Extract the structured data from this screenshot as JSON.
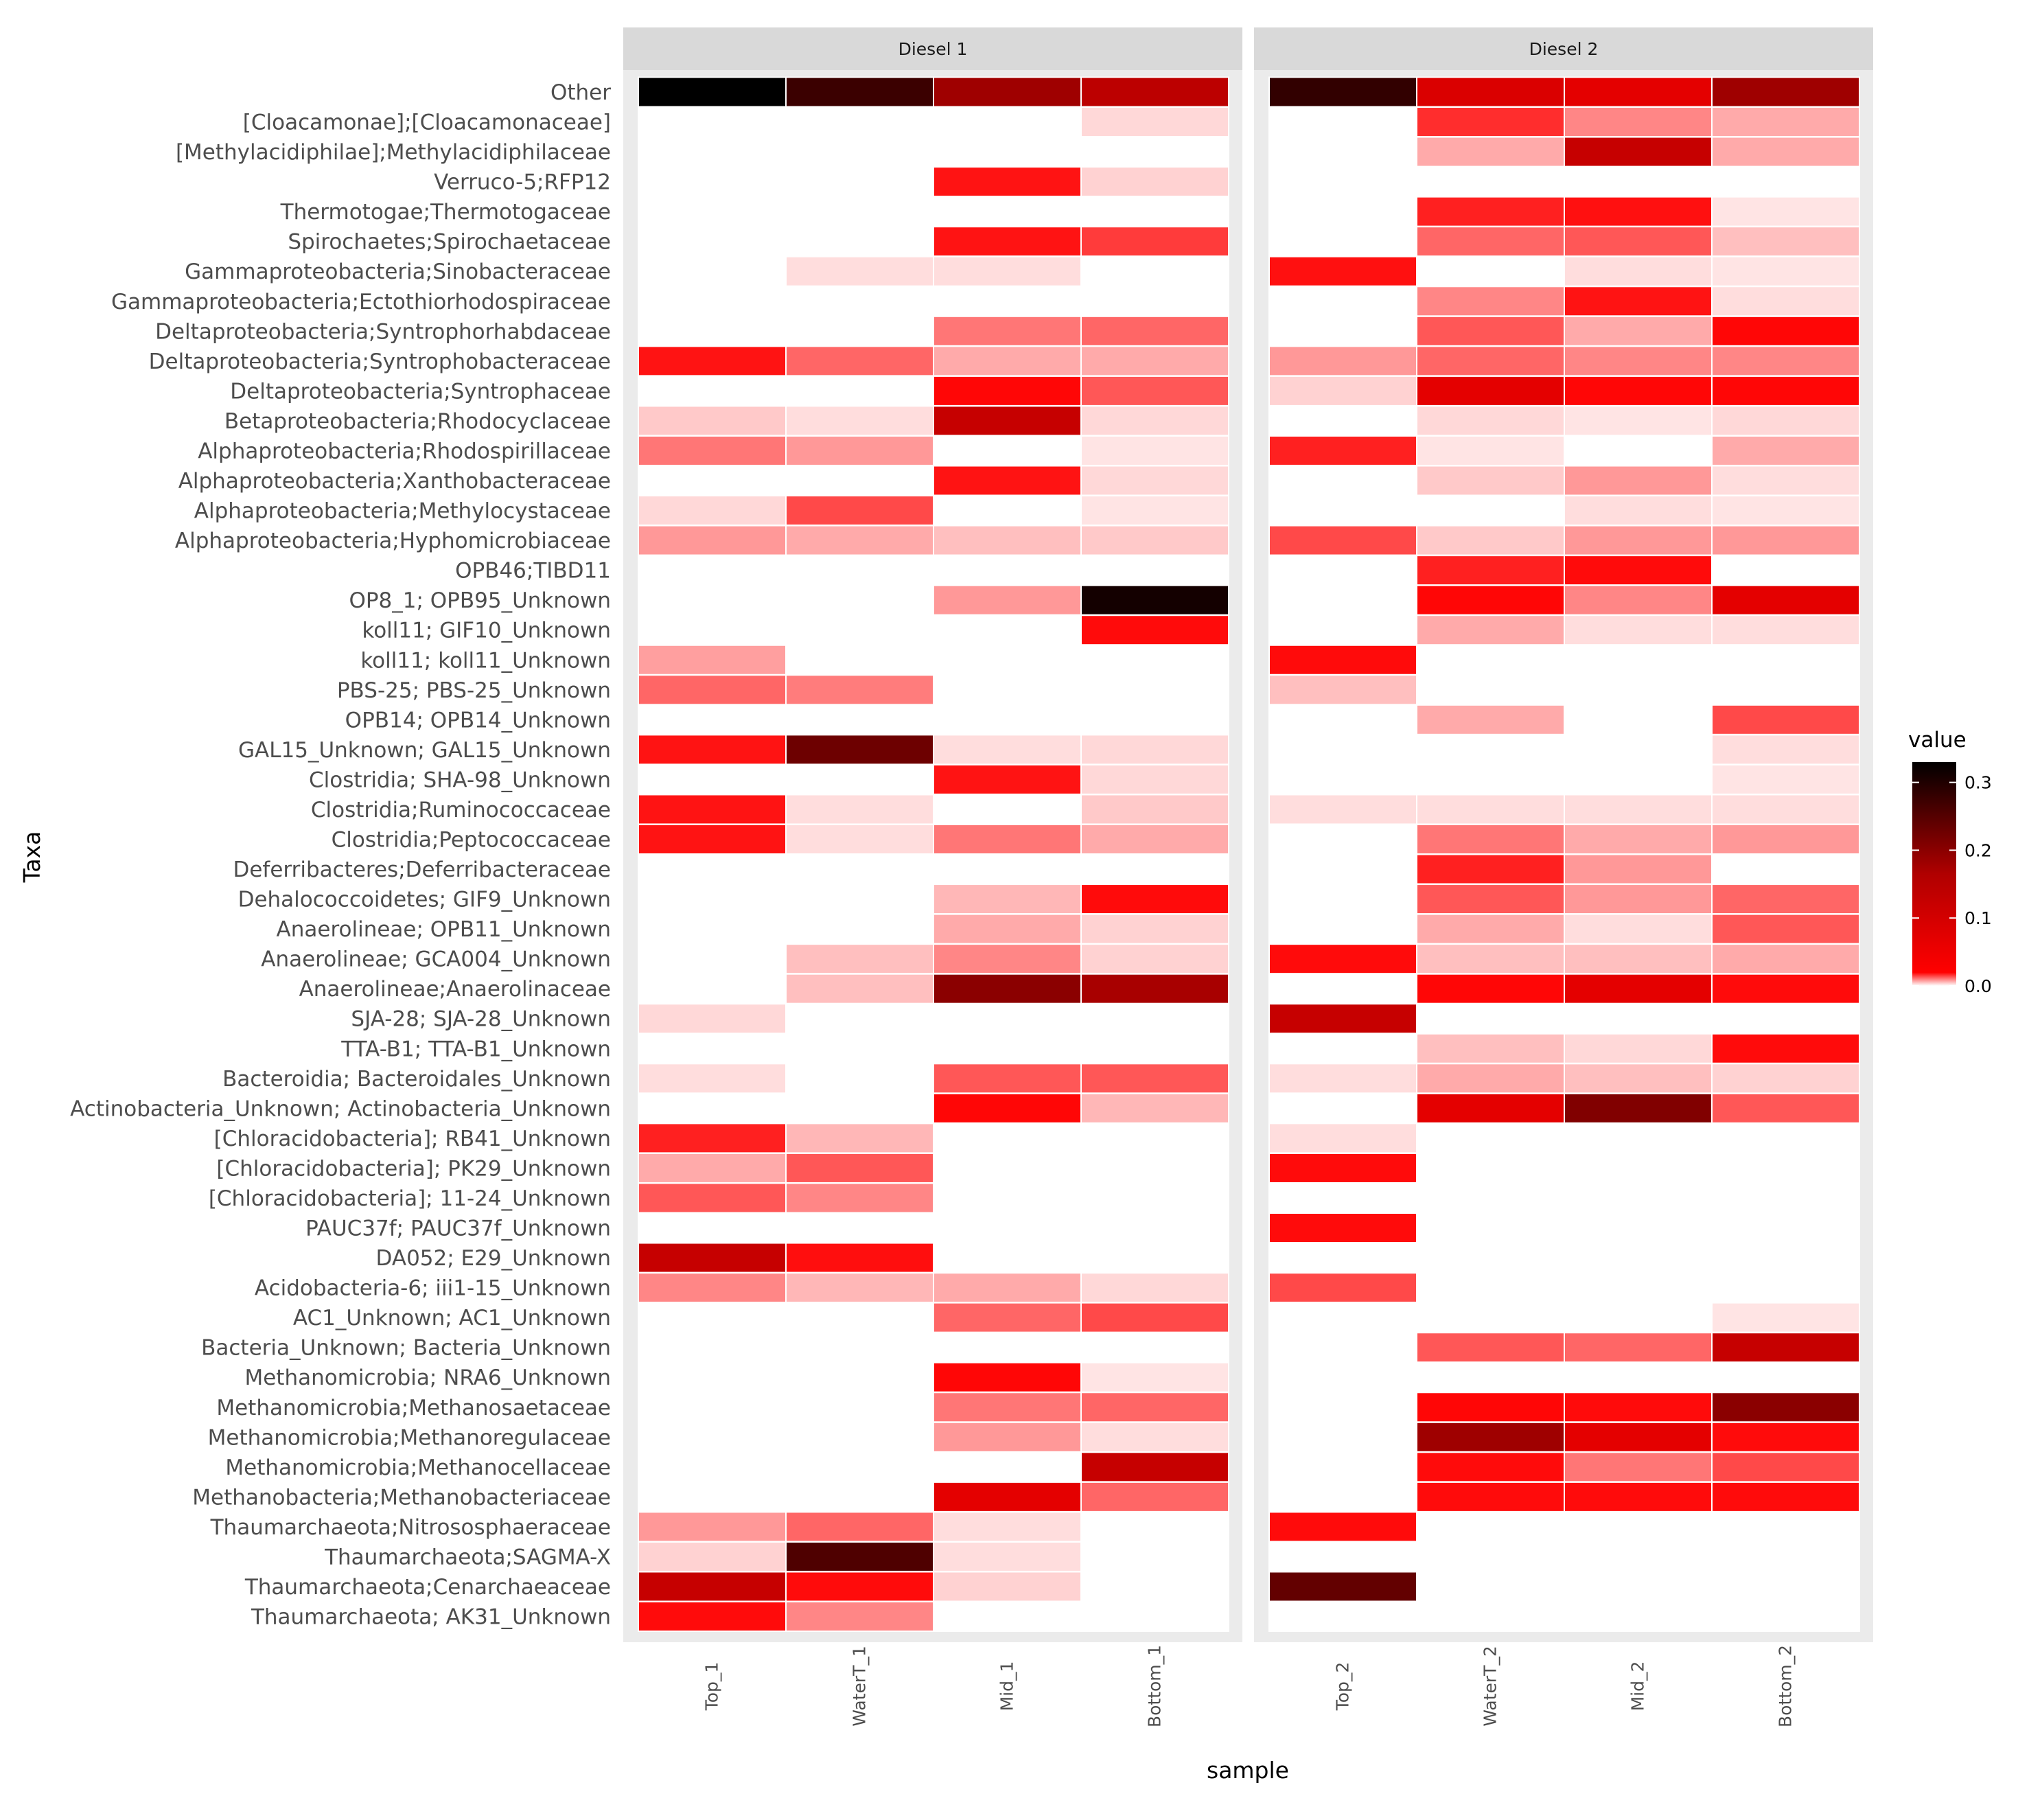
{
  "chart_data": {
    "type": "heatmap",
    "xlabel": "sample",
    "ylabel": "Taxa",
    "facets": [
      {
        "name": "Diesel 1",
        "samples": [
          "Top_1",
          "WaterT_1",
          "Mid_1",
          "Bottom_1"
        ]
      },
      {
        "name": "Diesel 2",
        "samples": [
          "Top_2",
          "WaterT_2",
          "Mid_2",
          "Bottom_2"
        ]
      }
    ],
    "rows": [
      "Other",
      "[Cloacamonae];[Cloacamonaceae]",
      "[Methylacidiphilae];Methylacidiphilaceae",
      "Verruco-5;RFP12",
      "Thermotogae;Thermotogaceae",
      "Spirochaetes;Spirochaetaceae",
      "Gammaproteobacteria;Sinobacteraceae",
      "Gammaproteobacteria;Ectothiorhodospiraceae",
      "Deltaproteobacteria;Syntrophorhabdaceae",
      "Deltaproteobacteria;Syntrophobacteraceae",
      "Deltaproteobacteria;Syntrophaceae",
      "Betaproteobacteria;Rhodocyclaceae",
      "Alphaproteobacteria;Rhodospirillaceae",
      "Alphaproteobacteria;Xanthobacteraceae",
      "Alphaproteobacteria;Methylocystaceae",
      "Alphaproteobacteria;Hyphomicrobiaceae",
      "OPB46;TIBD11",
      "OP8_1; OPB95_Unknown",
      "koll11; GIF10_Unknown",
      "koll11; koll11_Unknown",
      "PBS-25; PBS-25_Unknown",
      "OPB14; OPB14_Unknown",
      "GAL15_Unknown; GAL15_Unknown",
      "Clostridia; SHA-98_Unknown",
      "Clostridia;Ruminococcaceae",
      "Clostridia;Peptococcaceae",
      "Deferribacteres;Deferribacteraceae",
      "Dehalococcoidetes; GIF9_Unknown",
      "Anaerolineae; OPB11_Unknown",
      "Anaerolineae; GCA004_Unknown",
      "Anaerolineae;Anaerolinaceae",
      "SJA-28; SJA-28_Unknown",
      "TTA-B1; TTA-B1_Unknown",
      "Bacteroidia; Bacteroidales_Unknown",
      "Actinobacteria_Unknown; Actinobacteria_Unknown",
      "[Chloracidobacteria]; RB41_Unknown",
      "[Chloracidobacteria]; PK29_Unknown",
      "[Chloracidobacteria]; 11-24_Unknown",
      "PAUC37f; PAUC37f_Unknown",
      "DA052; E29_Unknown",
      "Acidobacteria-6; iii1-15_Unknown",
      "AC1_Unknown; AC1_Unknown",
      "Bacteria_Unknown; Bacteria_Unknown",
      "Methanomicrobia; NRA6_Unknown",
      "Methanomicrobia;Methanosaetaceae",
      "Methanomicrobia;Methanoregulaceae",
      "Methanomicrobia;Methanocellaceae",
      "Methanobacteria;Methanobacteriaceae",
      "Thaumarchaeota;Nitrososphaeraceae",
      "Thaumarchaeota;SAGMA-X",
      "Thaumarchaeota;Cenarchaeaceae",
      "Thaumarchaeota; AK31_Unknown"
    ],
    "values_diesel1": [
      [
        0.33,
        0.27,
        0.17,
        0.14
      ],
      [
        0,
        0,
        0,
        0.005
      ],
      [
        0,
        0,
        0,
        0
      ],
      [
        0,
        0,
        0.065,
        0.006
      ],
      [
        0,
        0,
        0,
        0
      ],
      [
        0,
        0,
        0.065,
        0.05
      ],
      [
        0,
        0.004,
        0.004,
        0
      ],
      [
        0,
        0,
        0,
        0
      ],
      [
        0,
        0,
        0.03,
        0.035
      ],
      [
        0.065,
        0.035,
        0.015,
        0.015
      ],
      [
        0,
        0,
        0.07,
        0.04
      ],
      [
        0.008,
        0.004,
        0.13,
        0.005
      ],
      [
        0.03,
        0.02,
        0,
        0.003
      ],
      [
        0,
        0,
        0.065,
        0.005
      ],
      [
        0.005,
        0.045,
        0,
        0.003
      ],
      [
        0.02,
        0.015,
        0.01,
        0.008
      ],
      [
        0,
        0,
        0,
        0
      ],
      [
        0,
        0,
        0.02,
        0.31
      ],
      [
        0,
        0,
        0,
        0.068
      ],
      [
        0.018,
        0,
        0,
        0
      ],
      [
        0.035,
        0.028,
        0,
        0
      ],
      [
        0,
        0,
        0,
        0
      ],
      [
        0.065,
        0.22,
        0.004,
        0.005
      ],
      [
        0,
        0,
        0.065,
        0.005
      ],
      [
        0.065,
        0.004,
        0,
        0.008
      ],
      [
        0.065,
        0.004,
        0.03,
        0.015
      ],
      [
        0,
        0,
        0,
        0
      ],
      [
        0,
        0,
        0.012,
        0.068
      ],
      [
        0,
        0,
        0.015,
        0.006
      ],
      [
        0,
        0.01,
        0.025,
        0.006
      ],
      [
        0,
        0.01,
        0.19,
        0.16
      ],
      [
        0.005,
        0,
        0,
        0
      ],
      [
        0,
        0,
        0,
        0
      ],
      [
        0.004,
        0,
        0.04,
        0.04
      ],
      [
        0,
        0,
        0.07,
        0.012
      ],
      [
        0.06,
        0.012,
        0,
        0
      ],
      [
        0.015,
        0.04,
        0,
        0
      ],
      [
        0.04,
        0.025,
        0,
        0
      ],
      [
        0,
        0,
        0,
        0
      ],
      [
        0.13,
        0.067,
        0,
        0
      ],
      [
        0.025,
        0.012,
        0.015,
        0.005
      ],
      [
        0,
        0,
        0.035,
        0.045
      ],
      [
        0,
        0,
        0,
        0
      ],
      [
        0,
        0,
        0.07,
        0.003
      ],
      [
        0,
        0,
        0.03,
        0.035
      ],
      [
        0,
        0,
        0.02,
        0.004
      ],
      [
        0,
        0,
        0,
        0.13
      ],
      [
        0,
        0,
        0.1,
        0.035
      ],
      [
        0.02,
        0.035,
        0.004,
        0
      ],
      [
        0.006,
        0.25,
        0.004,
        0
      ],
      [
        0.13,
        0.068,
        0.006,
        0
      ],
      [
        0.068,
        0.025,
        0,
        0
      ]
    ],
    "values_diesel2": [
      [
        0.28,
        0.11,
        0.1,
        0.17
      ],
      [
        0,
        0.055,
        0.025,
        0.015
      ],
      [
        0,
        0.015,
        0.13,
        0.015
      ],
      [
        0,
        0,
        0,
        0
      ],
      [
        0,
        0.06,
        0.066,
        0.003
      ],
      [
        0,
        0.035,
        0.04,
        0.01
      ],
      [
        0.066,
        0,
        0.004,
        0.003
      ],
      [
        0,
        0.025,
        0.065,
        0.004
      ],
      [
        0,
        0.04,
        0.015,
        0.07
      ],
      [
        0.02,
        0.035,
        0.025,
        0.025
      ],
      [
        0.006,
        0.1,
        0.07,
        0.07
      ],
      [
        0,
        0.005,
        0.003,
        0.005
      ],
      [
        0.06,
        0.003,
        0,
        0.015
      ],
      [
        0,
        0.008,
        0.02,
        0.004
      ],
      [
        0,
        0,
        0.004,
        0.003
      ],
      [
        0.045,
        0.008,
        0.02,
        0.02
      ],
      [
        0,
        0.06,
        0.068,
        0
      ],
      [
        0,
        0.07,
        0.025,
        0.1
      ],
      [
        0,
        0.015,
        0.004,
        0.004
      ],
      [
        0.068,
        0,
        0,
        0
      ],
      [
        0.01,
        0,
        0,
        0
      ],
      [
        0,
        0.015,
        0,
        0.045
      ],
      [
        0,
        0,
        0,
        0.004
      ],
      [
        0,
        0,
        0,
        0.003
      ],
      [
        0.004,
        0.004,
        0.004,
        0.004
      ],
      [
        0,
        0.03,
        0.015,
        0.02
      ],
      [
        0,
        0.06,
        0.02,
        0
      ],
      [
        0,
        0.04,
        0.02,
        0.035
      ],
      [
        0,
        0.015,
        0.004,
        0.04
      ],
      [
        0.068,
        0.01,
        0.01,
        0.015
      ],
      [
        0,
        0.07,
        0.1,
        0.068
      ],
      [
        0.13,
        0,
        0,
        0
      ],
      [
        0,
        0.01,
        0.005,
        0.068
      ],
      [
        0.004,
        0.015,
        0.01,
        0.006
      ],
      [
        0,
        0.1,
        0.2,
        0.04
      ],
      [
        0.004,
        0,
        0,
        0
      ],
      [
        0.068,
        0,
        0,
        0
      ],
      [
        0,
        0,
        0,
        0
      ],
      [
        0.068,
        0,
        0,
        0
      ],
      [
        0,
        0,
        0,
        0
      ],
      [
        0.045,
        0,
        0,
        0
      ],
      [
        0,
        0,
        0,
        0.003
      ],
      [
        0,
        0.04,
        0.035,
        0.13
      ],
      [
        0,
        0,
        0,
        0
      ],
      [
        0,
        0.07,
        0.068,
        0.19
      ],
      [
        0,
        0.17,
        0.1,
        0.068
      ],
      [
        0,
        0.068,
        0.03,
        0.045
      ],
      [
        0,
        0.068,
        0.068,
        0.068
      ],
      [
        0.068,
        0,
        0,
        0
      ],
      [
        0,
        0,
        0,
        0
      ],
      [
        0.23,
        0,
        0,
        0
      ],
      [
        0,
        0,
        0,
        0
      ]
    ],
    "legend": {
      "title": "value",
      "ticks": [
        "0.0",
        "0.1",
        "0.2",
        "0.3"
      ],
      "tick_values": [
        0,
        0.1,
        0.2,
        0.3
      ],
      "range": [
        0,
        0.33
      ]
    }
  },
  "colors": {
    "panel_background": "#ebebeb",
    "strip_background": "#d9d9d9",
    "low": "#ffffff",
    "mid": "#ff0000",
    "high": "#000000"
  }
}
